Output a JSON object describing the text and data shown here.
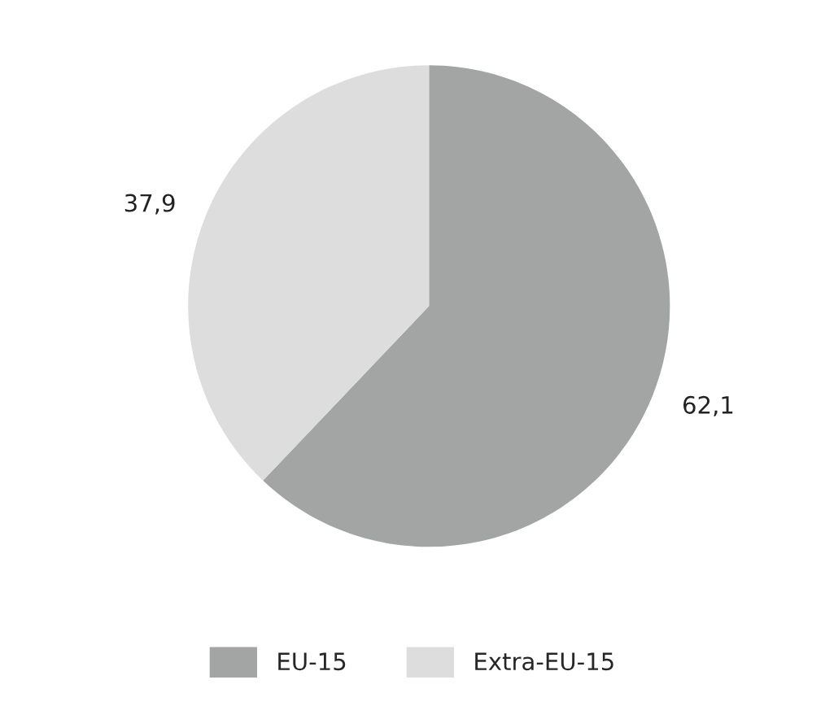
{
  "chart_data": {
    "type": "pie",
    "categories": [
      "EU-15",
      "Extra-EU-15"
    ],
    "values": [
      62.1,
      37.9
    ],
    "value_labels": [
      "62,1",
      "37,9"
    ],
    "colors": [
      "#a2a5a3",
      "#dddddd"
    ],
    "legend": "bottom"
  }
}
